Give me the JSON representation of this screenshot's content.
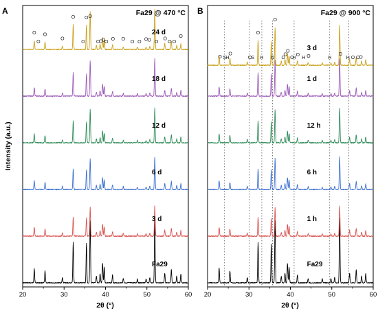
{
  "figure": {
    "ylabel": "Intensity (a.u.)",
    "xlabel": "2θ (°)",
    "series_colors": [
      "#000000",
      "#d9534f",
      "#3a6fd1",
      "#2e8b57",
      "#9b59b6",
      "#c8a018"
    ],
    "marker_o": "O",
    "marker_h": "H",
    "marker_s": "S"
  },
  "chart_data": [
    {
      "type": "line",
      "panel_letter": "A",
      "title": "Fa29 @ 470 °C",
      "xlabel": "2θ (°)",
      "ylabel": "Intensity (a.u.)",
      "xlim": [
        20,
        60
      ],
      "xticks": [
        20,
        30,
        40,
        50,
        60
      ],
      "grid": false,
      "series": [
        {
          "name": "Fa29",
          "color": "#000000"
        },
        {
          "name": "3 d",
          "color": "#d9534f"
        },
        {
          "name": "6 d",
          "color": "#3a6fd1"
        },
        {
          "name": "12 d",
          "color": "#2e8b57"
        },
        {
          "name": "18 d",
          "color": "#9b59b6"
        },
        {
          "name": "24 d",
          "color": "#c8a018"
        }
      ],
      "peaks": [
        {
          "x": 22.8,
          "h": 0.22
        },
        {
          "x": 25.4,
          "h": 0.18
        },
        {
          "x": 29.6,
          "h": 0.08
        },
        {
          "x": 32.2,
          "h": 0.62
        },
        {
          "x": 35.4,
          "h": 0.6
        },
        {
          "x": 36.3,
          "h": 0.95
        },
        {
          "x": 37.8,
          "h": 0.1
        },
        {
          "x": 38.7,
          "h": 0.14
        },
        {
          "x": 39.3,
          "h": 0.3
        },
        {
          "x": 39.7,
          "h": 0.24
        },
        {
          "x": 41.7,
          "h": 0.12
        },
        {
          "x": 44.3,
          "h": 0.07
        },
        {
          "x": 47.7,
          "h": 0.06
        },
        {
          "x": 49.8,
          "h": 0.06
        },
        {
          "x": 50.7,
          "h": 0.08
        },
        {
          "x": 51.9,
          "h": 1.0
        },
        {
          "x": 54.3,
          "h": 0.15
        },
        {
          "x": 55.9,
          "h": 0.2
        },
        {
          "x": 57.2,
          "h": 0.1
        },
        {
          "x": 58.2,
          "h": 0.14
        }
      ],
      "markers": [
        {
          "x": 22.8,
          "label": "O"
        },
        {
          "x": 23.8,
          "label": "O"
        },
        {
          "x": 25.4,
          "label": "O"
        },
        {
          "x": 29.6,
          "label": "O"
        },
        {
          "x": 32.2,
          "label": "O"
        },
        {
          "x": 34.6,
          "label": "O"
        },
        {
          "x": 35.4,
          "label": "O"
        },
        {
          "x": 36.3,
          "label": "O"
        },
        {
          "x": 38.2,
          "label": "O"
        },
        {
          "x": 38.9,
          "label": "O"
        },
        {
          "x": 39.5,
          "label": "O"
        },
        {
          "x": 40.2,
          "label": "O"
        },
        {
          "x": 41.8,
          "label": "O"
        },
        {
          "x": 44.3,
          "label": "O"
        },
        {
          "x": 46.5,
          "label": "O"
        },
        {
          "x": 48.2,
          "label": "O"
        },
        {
          "x": 49.8,
          "label": "O"
        },
        {
          "x": 50.6,
          "label": "O"
        },
        {
          "x": 52.3,
          "label": "O"
        },
        {
          "x": 54.4,
          "label": "O"
        },
        {
          "x": 55.5,
          "label": "O"
        },
        {
          "x": 56.6,
          "label": "O"
        },
        {
          "x": 58.2,
          "label": "O"
        }
      ]
    },
    {
      "type": "line",
      "panel_letter": "B",
      "title": "Fa29 @ 900 °C",
      "xlabel": "2θ (°)",
      "ylabel": "Intensity (a.u.)",
      "xlim": [
        20,
        60
      ],
      "xticks": [
        20,
        30,
        40,
        50,
        60
      ],
      "grid": false,
      "series": [
        {
          "name": "Fa29",
          "color": "#000000"
        },
        {
          "name": "1 h",
          "color": "#d9534f"
        },
        {
          "name": "6 h",
          "color": "#3a6fd1"
        },
        {
          "name": "12 h",
          "color": "#2e8b57"
        },
        {
          "name": "1 d",
          "color": "#9b59b6"
        },
        {
          "name": "3 d",
          "color": "#c8a018"
        }
      ],
      "peaks": [
        {
          "x": 22.8,
          "h": 0.22
        },
        {
          "x": 25.4,
          "h": 0.18
        },
        {
          "x": 29.6,
          "h": 0.08
        },
        {
          "x": 32.2,
          "h": 0.62
        },
        {
          "x": 35.4,
          "h": 0.6
        },
        {
          "x": 36.3,
          "h": 0.95
        },
        {
          "x": 37.8,
          "h": 0.1
        },
        {
          "x": 38.7,
          "h": 0.14
        },
        {
          "x": 39.3,
          "h": 0.3
        },
        {
          "x": 39.7,
          "h": 0.24
        },
        {
          "x": 41.7,
          "h": 0.12
        },
        {
          "x": 44.3,
          "h": 0.07
        },
        {
          "x": 47.7,
          "h": 0.06
        },
        {
          "x": 49.8,
          "h": 0.06
        },
        {
          "x": 50.7,
          "h": 0.08
        },
        {
          "x": 51.9,
          "h": 1.0
        },
        {
          "x": 54.3,
          "h": 0.15
        },
        {
          "x": 55.9,
          "h": 0.2
        },
        {
          "x": 57.2,
          "h": 0.1
        },
        {
          "x": 58.2,
          "h": 0.14
        }
      ],
      "dotted_lines": [
        24.1,
        30.1,
        33.1,
        35.7,
        40.9,
        49.5,
        54.1
      ],
      "markers": [
        {
          "x": 23.0,
          "label": "O"
        },
        {
          "x": 24.1,
          "label": "S"
        },
        {
          "x": 24.8,
          "label": "H"
        },
        {
          "x": 25.5,
          "label": "O"
        },
        {
          "x": 30.2,
          "label": "O"
        },
        {
          "x": 30.9,
          "label": "S"
        },
        {
          "x": 32.2,
          "label": "O"
        },
        {
          "x": 33.1,
          "label": "H"
        },
        {
          "x": 35.7,
          "label": "O"
        },
        {
          "x": 36.3,
          "label": "O"
        },
        {
          "x": 38.3,
          "label": "O"
        },
        {
          "x": 38.8,
          "label": "O"
        },
        {
          "x": 39.4,
          "label": "O"
        },
        {
          "x": 40.4,
          "label": "O"
        },
        {
          "x": 40.9,
          "label": "H"
        },
        {
          "x": 41.8,
          "label": "O"
        },
        {
          "x": 43.2,
          "label": "H"
        },
        {
          "x": 44.4,
          "label": "O"
        },
        {
          "x": 49.5,
          "label": "H"
        },
        {
          "x": 52.1,
          "label": "O"
        },
        {
          "x": 53.9,
          "label": "H"
        },
        {
          "x": 55.1,
          "label": "O"
        },
        {
          "x": 56.3,
          "label": "O"
        },
        {
          "x": 57.0,
          "label": "O"
        }
      ]
    }
  ]
}
